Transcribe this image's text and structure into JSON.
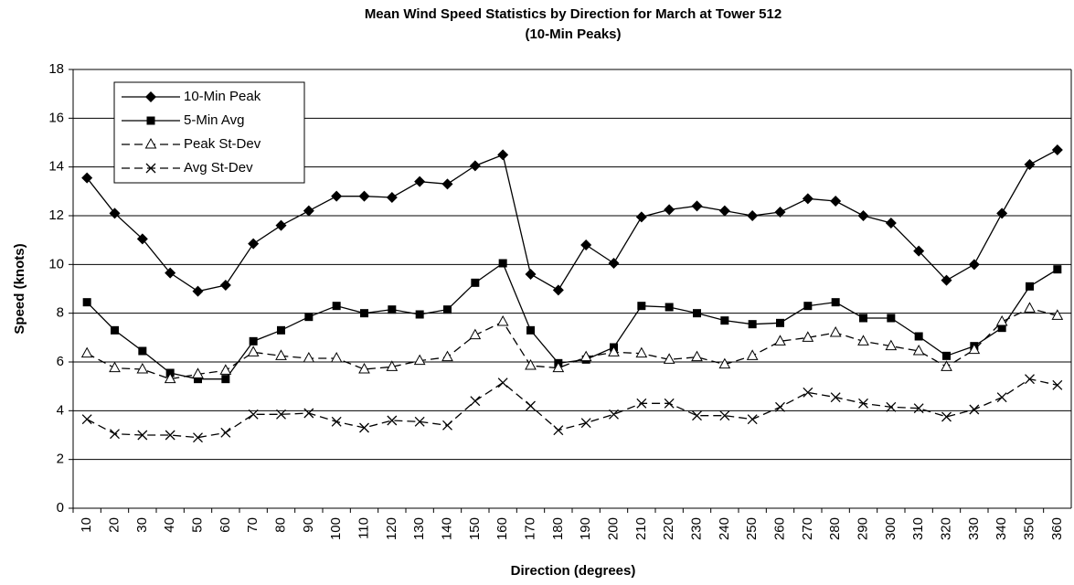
{
  "chart_data": {
    "type": "line",
    "title": "Mean Wind Speed Statistics by Direction for March at Tower 512",
    "subtitle": "(10-Min Peaks)",
    "x_label": "Direction (degrees)",
    "y_label": "Speed (knots)",
    "categories": [
      "10",
      "20",
      "30",
      "40",
      "50",
      "60",
      "70",
      "80",
      "90",
      "100",
      "110",
      "120",
      "130",
      "140",
      "150",
      "160",
      "170",
      "180",
      "190",
      "200",
      "210",
      "220",
      "230",
      "240",
      "250",
      "260",
      "270",
      "280",
      "290",
      "300",
      "310",
      "320",
      "330",
      "340",
      "350",
      "360"
    ],
    "ylim": [
      0,
      18
    ],
    "yticks": [
      0,
      2,
      4,
      6,
      8,
      10,
      12,
      14,
      16,
      18
    ],
    "grid": true,
    "legend": "upper left",
    "series": [
      {
        "name": "10-Min Peak",
        "color": "#000000",
        "marker": "diamond",
        "dash": false,
        "values": [
          13.55,
          12.1,
          11.05,
          9.65,
          8.9,
          9.15,
          10.85,
          11.6,
          12.2,
          12.8,
          12.8,
          12.75,
          13.4,
          13.3,
          14.05,
          14.5,
          9.6,
          8.95,
          10.8,
          10.05,
          11.95,
          12.25,
          12.4,
          12.2,
          12.0,
          12.15,
          12.7,
          12.6,
          12.0,
          11.7,
          10.55,
          9.35,
          10.0,
          12.1,
          14.1,
          14.7
        ]
      },
      {
        "name": "5-Min Avg",
        "color": "#000000",
        "marker": "square",
        "dash": false,
        "values": [
          8.45,
          7.3,
          6.45,
          5.55,
          5.3,
          5.3,
          6.85,
          7.3,
          7.85,
          8.3,
          8.0,
          8.15,
          7.95,
          8.15,
          9.25,
          10.05,
          7.3,
          5.95,
          6.1,
          6.6,
          8.3,
          8.25,
          8.0,
          7.7,
          7.55,
          7.6,
          8.3,
          8.45,
          7.8,
          7.8,
          7.05,
          6.25,
          6.65,
          7.4,
          9.1,
          9.8
        ]
      },
      {
        "name": "Peak St-Dev",
        "color": "#000000",
        "marker": "triangle",
        "dash": true,
        "values": [
          6.35,
          5.75,
          5.7,
          5.3,
          5.5,
          5.65,
          6.4,
          6.25,
          6.15,
          6.15,
          5.7,
          5.8,
          6.05,
          6.2,
          7.1,
          7.65,
          5.85,
          5.75,
          6.2,
          6.4,
          6.35,
          6.1,
          6.2,
          5.9,
          6.25,
          6.85,
          7.0,
          7.2,
          6.85,
          6.65,
          6.45,
          5.8,
          6.5,
          7.65,
          8.2,
          7.9
        ]
      },
      {
        "name": "Avg St-Dev",
        "color": "#000000",
        "marker": "x",
        "dash": true,
        "values": [
          3.65,
          3.05,
          3.0,
          3.0,
          2.9,
          3.1,
          3.85,
          3.85,
          3.9,
          3.55,
          3.3,
          3.6,
          3.55,
          3.4,
          4.4,
          5.15,
          4.2,
          3.2,
          3.5,
          3.85,
          4.3,
          4.3,
          3.8,
          3.8,
          3.65,
          4.15,
          4.75,
          4.55,
          4.3,
          4.15,
          4.1,
          3.75,
          4.05,
          4.55,
          5.3,
          5.05
        ]
      }
    ]
  }
}
